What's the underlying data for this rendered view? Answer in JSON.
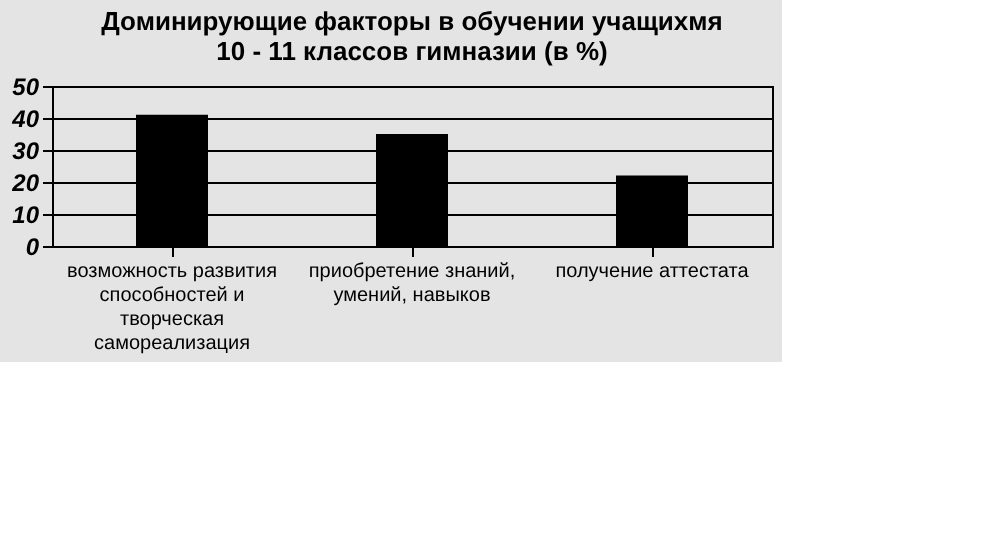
{
  "chart_data": {
    "type": "bar",
    "title": "Доминирующие  факторы в обучении учащихмя\n10 - 11 классов гимназии (в %)",
    "categories": [
      "возможность развития способностей и творческая самореализация",
      "приобретение знаний, умений, навыков",
      "получение аттестата"
    ],
    "values": [
      41,
      35,
      22
    ],
    "color": "#000000",
    "ylim": [
      0,
      50
    ],
    "yticks": [
      0,
      10,
      20,
      30,
      40,
      50
    ],
    "grid": "y"
  }
}
